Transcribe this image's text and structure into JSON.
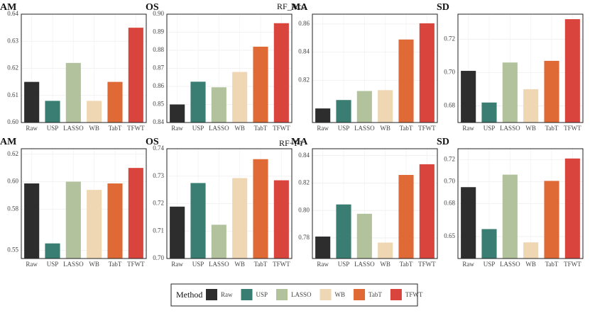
{
  "chart_data": [
    {
      "type": "bar",
      "title": "AM",
      "categories": [
        "Raw",
        "USP",
        "LASSO",
        "WB",
        "TabT",
        "TFWT"
      ],
      "values": [
        0.615,
        0.608,
        0.622,
        0.608,
        0.615,
        0.635
      ],
      "colors": [
        "#2d2d2d",
        "#3a7d72",
        "#b1c29c",
        "#efd7b3",
        "#e06a35",
        "#d9453d"
      ],
      "ylim": [
        0.6,
        0.64
      ],
      "yticks": [
        {
          "value": 0.6,
          "label": "0.60"
        },
        0.61,
        0.62,
        0.63,
        {
          "value": 0.64,
          "label": "0.64"
        }
      ],
      "grid": true
    },
    {
      "type": "bar",
      "title": "OS",
      "categories": [
        "Raw",
        "USP",
        "LASSO",
        "WB",
        "TabT",
        "TFWT"
      ],
      "values": [
        0.85,
        0.8626,
        0.8595,
        0.868,
        0.882,
        0.895
      ],
      "colors": [
        "#2d2d2d",
        "#3a7d72",
        "#b1c29c",
        "#efd7b3",
        "#e06a35",
        "#d9453d"
      ],
      "ylim": [
        0.84,
        0.9
      ],
      "yticks": [
        0.84,
        0.85,
        0.86,
        0.87,
        0.88,
        0.89,
        {
          "value": 0.9,
          "label": "0.90"
        }
      ],
      "grid": true
    },
    {
      "type": "bar",
      "title": "MA",
      "categories": [
        "Raw",
        "USP",
        "LASSO",
        "WB",
        "TabT",
        "TFWT"
      ],
      "values": [
        0.8,
        0.806,
        0.8124,
        0.813,
        0.849,
        0.8605
      ],
      "colors": [
        "#2d2d2d",
        "#3a7d72",
        "#b1c29c",
        "#efd7b3",
        "#e06a35",
        "#d9453d"
      ],
      "ylim": [
        0.79,
        0.867
      ],
      "yticks": [
        0.82,
        0.84,
        0.86
      ],
      "grid": true
    },
    {
      "type": "bar",
      "title": "SD",
      "categories": [
        "Raw",
        "USP",
        "LASSO",
        "WB",
        "TabT",
        "TFWT"
      ],
      "values": [
        0.701,
        0.682,
        0.706,
        0.69,
        0.707,
        0.732
      ],
      "colors": [
        "#2d2d2d",
        "#3a7d72",
        "#b1c29c",
        "#efd7b3",
        "#e06a35",
        "#d9453d"
      ],
      "ylim": [
        0.67,
        0.735
      ],
      "yticks": [
        0.68,
        {
          "value": 0.7,
          "label": "0.70"
        },
        0.72
      ],
      "grid": true
    },
    {
      "type": "bar",
      "title": "AM",
      "categories": [
        "Raw",
        "USP",
        "LASSO",
        "WB",
        "TabT",
        "TFWT"
      ],
      "values": [
        0.5987,
        0.555,
        0.6,
        0.594,
        0.5987,
        0.61
      ],
      "colors": [
        "#2d2d2d",
        "#3a7d72",
        "#b1c29c",
        "#efd7b3",
        "#e06a35",
        "#d9453d"
      ],
      "ylim": [
        0.544,
        0.624
      ],
      "yticks": [
        0.55,
        0.58,
        {
          "value": 0.6,
          "label": "0.60"
        },
        0.62
      ],
      "grid": true
    },
    {
      "type": "bar",
      "title": "OS",
      "categories": [
        "Raw",
        "USP",
        "LASSO",
        "WB",
        "TabT",
        "TFWT"
      ],
      "values": [
        0.7189,
        0.7275,
        0.7123,
        0.7293,
        0.7362,
        0.7285
      ],
      "colors": [
        "#2d2d2d",
        "#3a7d72",
        "#b1c29c",
        "#efd7b3",
        "#e06a35",
        "#d9453d"
      ],
      "ylim": [
        0.7,
        0.74
      ],
      "yticks": [
        {
          "value": 0.7,
          "label": "0.70"
        },
        0.71,
        0.72,
        0.73,
        0.74
      ],
      "grid": true
    },
    {
      "type": "bar",
      "title": "MA",
      "categories": [
        "Raw",
        "USP",
        "LASSO",
        "WB",
        "TabT",
        "TFWT"
      ],
      "values": [
        0.781,
        0.8044,
        0.7976,
        0.7766,
        0.8259,
        0.8337
      ],
      "colors": [
        "#2d2d2d",
        "#3a7d72",
        "#b1c29c",
        "#efd7b3",
        "#e06a35",
        "#d9453d"
      ],
      "ylim": [
        0.765,
        0.845
      ],
      "yticks": [
        0.78,
        {
          "value": 0.8,
          "label": "0.80"
        },
        0.82,
        0.84
      ],
      "grid": true
    },
    {
      "type": "bar",
      "title": "SD",
      "categories": [
        "Raw",
        "USP",
        "LASSO",
        "WB",
        "TabT",
        "TFWT"
      ],
      "values": [
        0.695,
        0.6568,
        0.7064,
        0.6447,
        0.7007,
        0.7211
      ],
      "colors": [
        "#2d2d2d",
        "#3a7d72",
        "#b1c29c",
        "#efd7b3",
        "#e06a35",
        "#d9453d"
      ],
      "ylim": [
        0.63,
        0.73
      ],
      "yticks": [
        0.65,
        0.68,
        {
          "value": 0.7,
          "label": "0.70"
        },
        0.72
      ],
      "grid": true
    }
  ],
  "row_labels": [
    "RF_Acc",
    "RF−F1"
  ],
  "legend_title": "Method"
}
